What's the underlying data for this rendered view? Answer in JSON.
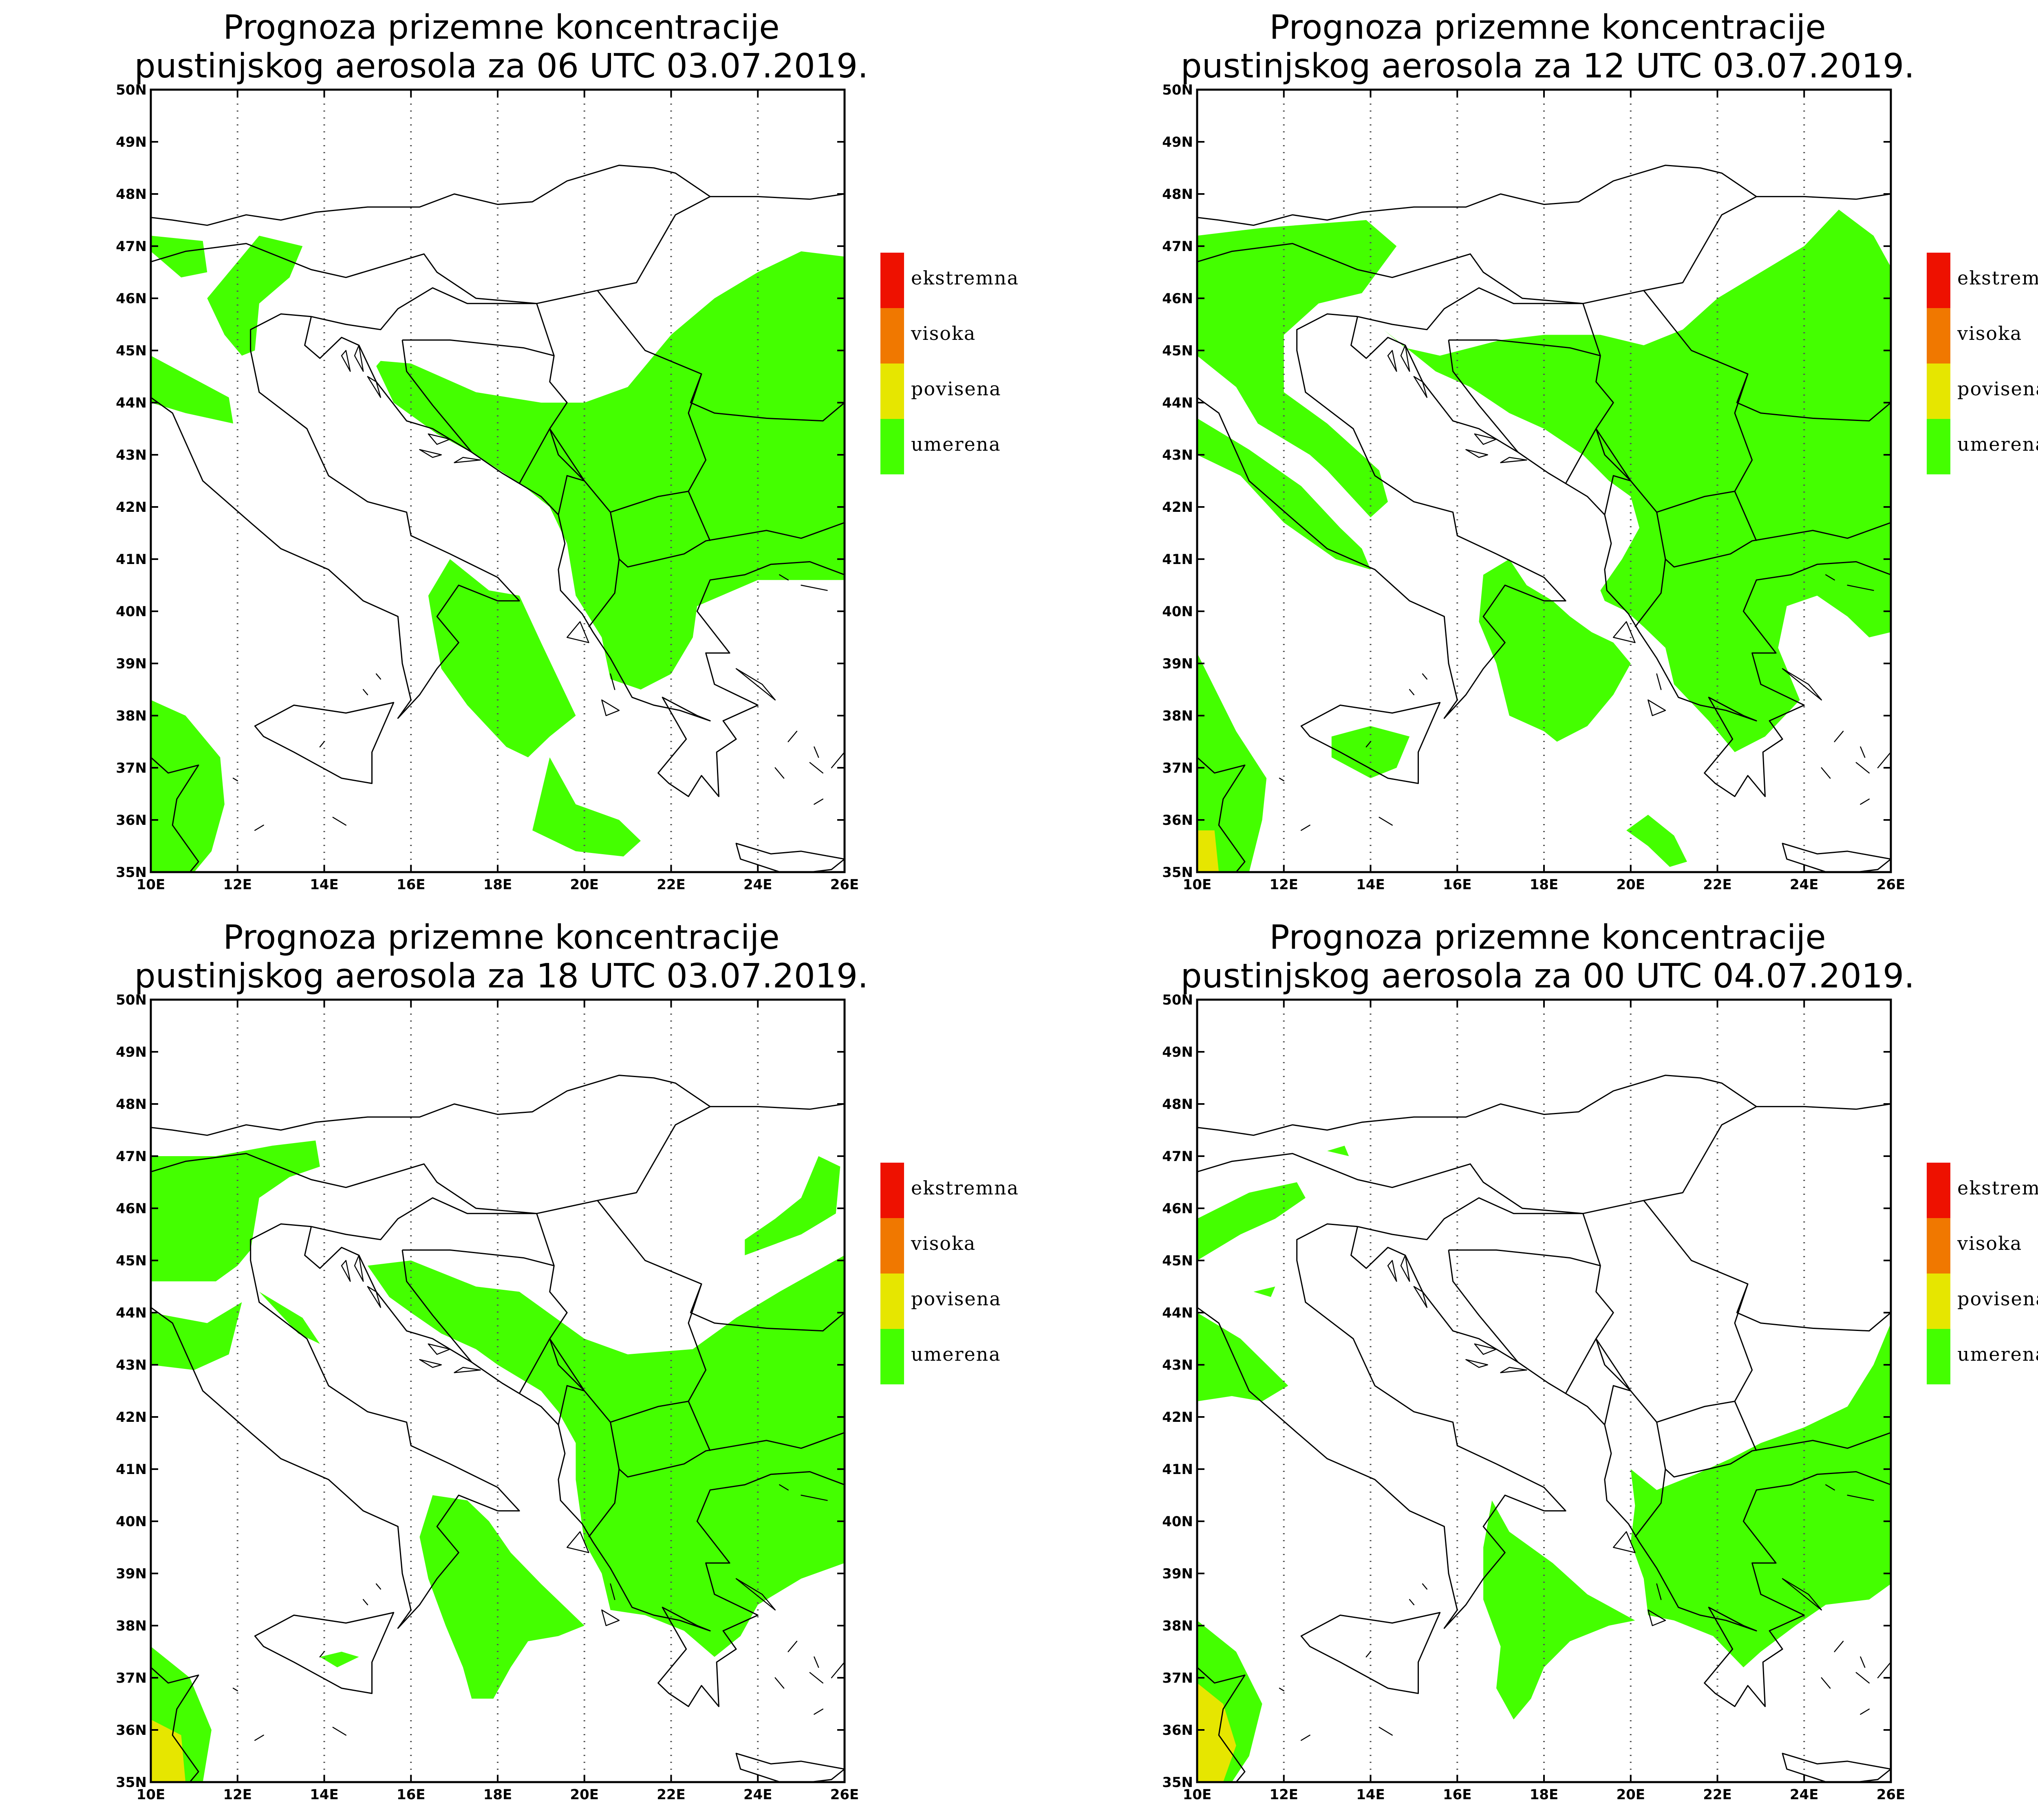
{
  "colors": {
    "umerena": "#44ff00",
    "povisena": "#e6e600",
    "visoka": "#f07800",
    "ekstremna": "#ee1100",
    "border": "#000000",
    "grid": "#555555"
  },
  "legend": [
    {
      "label": "ekstremna",
      "color": "#ee1100"
    },
    {
      "label": "visoka",
      "color": "#f07800"
    },
    {
      "label": "povisena",
      "color": "#e6e600"
    },
    {
      "label": "umerena",
      "color": "#44ff00"
    }
  ],
  "axes": {
    "lon_min": 10,
    "lon_max": 26,
    "lat_min": 35,
    "lat_max": 50,
    "x_ticks": [
      "10E",
      "12E",
      "14E",
      "16E",
      "18E",
      "20E",
      "22E",
      "24E",
      "26E"
    ],
    "y_ticks": [
      "35N",
      "36N",
      "37N",
      "38N",
      "39N",
      "40N",
      "41N",
      "42N",
      "43N",
      "44N",
      "45N",
      "46N",
      "47N",
      "48N",
      "49N",
      "50N"
    ],
    "grid": "dotted vertical lines at x ticks"
  },
  "panels": [
    {
      "title_line1": "Prognoza prizemne koncentracije",
      "title_line2": "pustinjskog aerosola za 06 UTC 03.07.2019."
    },
    {
      "title_line1": "Prognoza prizemne koncentracije",
      "title_line2": "pustinjskog aerosola za 12 UTC 03.07.2019."
    },
    {
      "title_line1": "Prognoza prizemne koncentracije",
      "title_line2": "pustinjskog aerosola za 18 UTC 03.07.2019."
    },
    {
      "title_line1": "Prognoza prizemne koncentracije",
      "title_line2": "pustinjskog aerosola za 00 UTC 04.07.2019."
    }
  ]
}
